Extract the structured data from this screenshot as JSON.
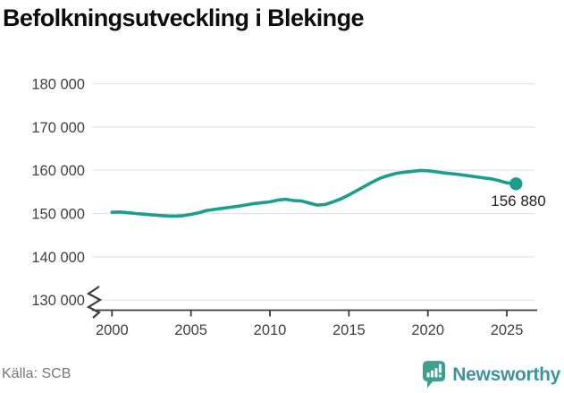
{
  "header": {
    "title": "Befolkningsutveckling i Blekinge"
  },
  "chart_data": {
    "type": "line",
    "title": "Befolkningsutveckling i Blekinge",
    "xlabel": "",
    "ylabel": "",
    "xlim": [
      2000,
      2026
    ],
    "ylim": [
      130000,
      180000
    ],
    "grid": "horizontal",
    "axis_break_below": 130000,
    "line_color": "#1a9e8d",
    "x_ticks": [
      2000,
      2005,
      2010,
      2015,
      2020,
      2025
    ],
    "y_ticks": [
      {
        "value": 180000,
        "label": "180 000"
      },
      {
        "value": 170000,
        "label": "170 000"
      },
      {
        "value": 160000,
        "label": "160 000"
      },
      {
        "value": 150000,
        "label": "150 000"
      },
      {
        "value": 140000,
        "label": "140 000"
      },
      {
        "value": 130000,
        "label": "130 000"
      }
    ],
    "series": [
      {
        "name": "Befolkning i Blekinge",
        "x": [
          2000,
          2000.5,
          2001,
          2001.5,
          2002,
          2002.5,
          2003,
          2003.5,
          2004,
          2004.5,
          2005,
          2005.5,
          2006,
          2006.5,
          2007,
          2007.5,
          2008,
          2008.5,
          2009,
          2009.5,
          2010,
          2010.5,
          2011,
          2011.5,
          2012,
          2012.5,
          2013,
          2013.5,
          2014,
          2014.5,
          2015,
          2015.5,
          2016,
          2016.5,
          2017,
          2017.5,
          2018,
          2018.5,
          2019,
          2019.5,
          2020,
          2020.5,
          2021,
          2021.5,
          2022,
          2022.5,
          2023,
          2023.5,
          2024,
          2024.5,
          2025,
          2025.58
        ],
        "values": [
          150300,
          150350,
          150200,
          150000,
          149850,
          149700,
          149550,
          149450,
          149400,
          149500,
          149800,
          150200,
          150700,
          150950,
          151200,
          151450,
          151700,
          152000,
          152300,
          152500,
          152700,
          153100,
          153300,
          153000,
          152900,
          152400,
          151950,
          152100,
          152700,
          153400,
          154300,
          155300,
          156300,
          157300,
          158200,
          158800,
          159300,
          159550,
          159750,
          159950,
          159900,
          159650,
          159400,
          159200,
          159000,
          158750,
          158500,
          158250,
          158000,
          157600,
          157100,
          156880
        ]
      }
    ],
    "end_point": {
      "x": 2025.58,
      "value": 156880,
      "label": "156 880"
    }
  },
  "footer": {
    "source": "Källa: SCB",
    "brand": "Newsworthy"
  }
}
